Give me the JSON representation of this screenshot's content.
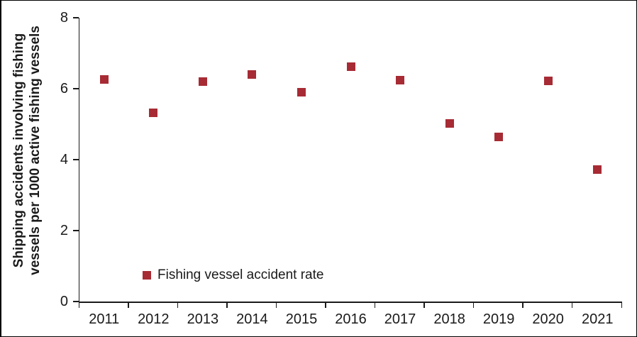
{
  "figure": {
    "background": "#ffffff",
    "border_color": "#000000"
  },
  "chart_data": {
    "type": "scatter",
    "marker_shape": "square",
    "marker_color": "#A72B34",
    "axis_color": "#1A1A1A",
    "text_color": "#1A1A1A",
    "grid": false,
    "title": "",
    "xlabel": "",
    "ylabel_line1": "Shipping accidents involving fishing",
    "ylabel_line2": "vessels per 1000 active fishing vessels",
    "ylim": [
      0,
      8
    ],
    "yticks": [
      "0",
      "2",
      "4",
      "6",
      "8"
    ],
    "x": [
      "2011",
      "2012",
      "2013",
      "2014",
      "2015",
      "2016",
      "2017",
      "2018",
      "2019",
      "2020",
      "2021"
    ],
    "series": [
      {
        "name": "Fishing vessel accident rate",
        "values": [
          6.27,
          5.33,
          6.21,
          6.4,
          5.9,
          6.62,
          6.25,
          5.03,
          4.65,
          6.23,
          3.73
        ]
      }
    ],
    "legend": {
      "label": "Fishing vessel accident rate",
      "position": "inside-bottom-left"
    }
  }
}
